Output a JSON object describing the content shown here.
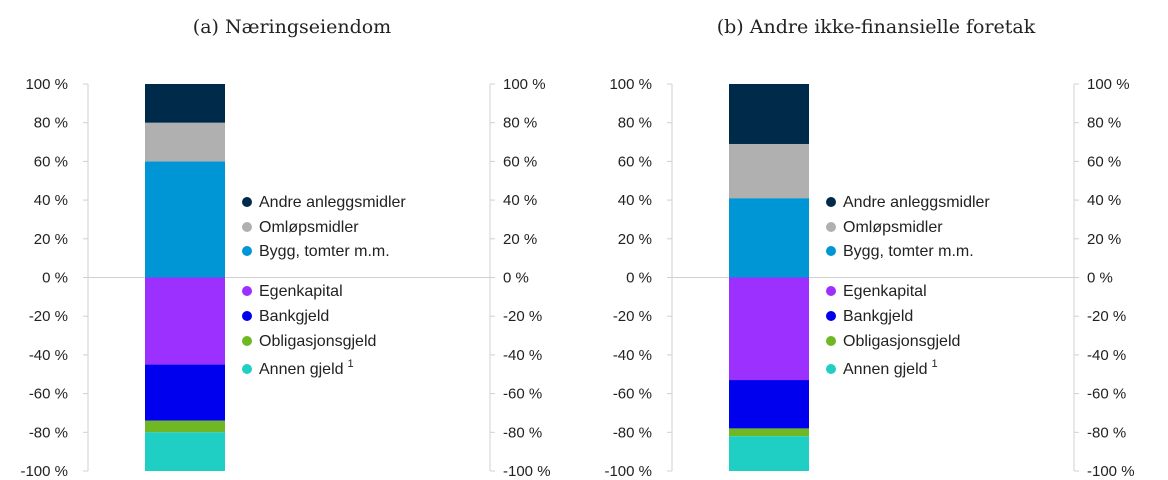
{
  "chart_data": [
    {
      "type": "bar",
      "stacked": true,
      "title": "(a) Næringseiendom",
      "ylim": [
        -100,
        100
      ],
      "yticks": [
        "100 %",
        "80 %",
        "60 %",
        "40 %",
        "20 %",
        "0 %",
        "-20 %",
        "-40 %",
        "-60 %",
        "-80 %",
        "-100 %"
      ],
      "grid": false,
      "legend_position": "right-of-bar",
      "series": [
        {
          "name": "Bygg, tomter m.m.",
          "value": 60,
          "color": "#0096D6"
        },
        {
          "name": "Omløpsmidler",
          "value": 20,
          "color": "#B0B0B0"
        },
        {
          "name": "Andre anleggsmidler",
          "value": 20,
          "color": "#002A4A"
        },
        {
          "name": "Egenkapital",
          "value": -45,
          "color": "#9B30FF"
        },
        {
          "name": "Bankgjeld",
          "value": -29,
          "color": "#0000EE"
        },
        {
          "name": "Obligasjonsgjeld",
          "value": -6,
          "color": "#6FB823"
        },
        {
          "name": "Annen gjeld",
          "name_sup": "1",
          "value": -20,
          "color": "#20CFC4"
        }
      ]
    },
    {
      "type": "bar",
      "stacked": true,
      "title": "(b) Andre ikke-finansielle foretak",
      "ylim": [
        -100,
        100
      ],
      "yticks": [
        "100 %",
        "80 %",
        "60 %",
        "40 %",
        "20 %",
        "0 %",
        "-20 %",
        "-40 %",
        "-60 %",
        "-80 %",
        "-100 %"
      ],
      "grid": false,
      "legend_position": "right-of-bar",
      "series": [
        {
          "name": "Bygg, tomter m.m.",
          "value": 41,
          "color": "#0096D6"
        },
        {
          "name": "Omløpsmidler",
          "value": 28,
          "color": "#B0B0B0"
        },
        {
          "name": "Andre anleggsmidler",
          "value": 31,
          "color": "#002A4A"
        },
        {
          "name": "Egenkapital",
          "value": -53,
          "color": "#9B30FF"
        },
        {
          "name": "Bankgjeld",
          "value": -25,
          "color": "#0000EE"
        },
        {
          "name": "Obligasjonsgjeld",
          "value": -4,
          "color": "#6FB823"
        },
        {
          "name": "Annen gjeld",
          "name_sup": "1",
          "value": -18,
          "color": "#20CFC4"
        }
      ]
    }
  ]
}
